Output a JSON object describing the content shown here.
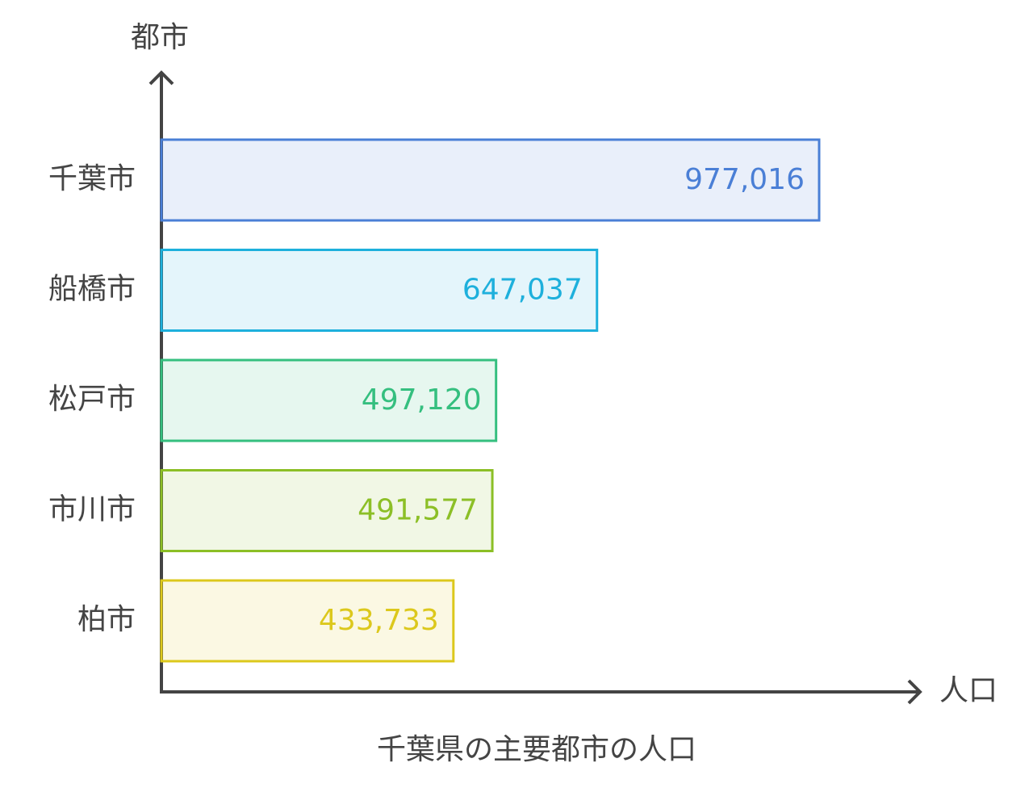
{
  "chart_data": {
    "type": "bar",
    "orientation": "horizontal",
    "title": "千葉県の主要都市の人口",
    "x_label": "人口",
    "y_label": "都市",
    "categories": [
      "千葉市",
      "船橋市",
      "松戸市",
      "市川市",
      "柏市"
    ],
    "values": [
      977016,
      647037,
      497120,
      491577,
      433733
    ],
    "value_labels": [
      "977,016",
      "647,037",
      "497,120",
      "491,577",
      "433,733"
    ],
    "colors": [
      "#4a7fd6",
      "#1eb0dc",
      "#35bf7f",
      "#8cbf26",
      "#dcc81c"
    ]
  }
}
